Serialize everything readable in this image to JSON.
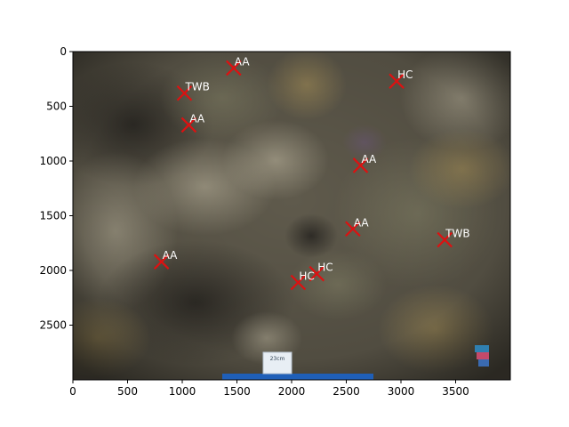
{
  "chart_data": {
    "type": "scatter",
    "title": "",
    "xlabel": "",
    "ylabel": "",
    "xlim": [
      0,
      4000
    ],
    "ylim": [
      3000,
      0
    ],
    "x_ticks": [
      0,
      500,
      1000,
      1500,
      2000,
      2500,
      3000,
      3500
    ],
    "y_ticks": [
      0,
      500,
      1000,
      1500,
      2000,
      2500
    ],
    "grid": false,
    "background": "underwater coral reef photograph",
    "marker": {
      "shape": "x",
      "color": "#dd1111"
    },
    "label_color": "#ffffff",
    "scale_tag_text": "23cm",
    "points": [
      {
        "x": 1470,
        "y": 150,
        "label": "AA"
      },
      {
        "x": 2960,
        "y": 270,
        "label": "HC"
      },
      {
        "x": 1020,
        "y": 380,
        "label": "TWB"
      },
      {
        "x": 1060,
        "y": 670,
        "label": "AA"
      },
      {
        "x": 2630,
        "y": 1040,
        "label": "AA"
      },
      {
        "x": 2560,
        "y": 1620,
        "label": "AA"
      },
      {
        "x": 3400,
        "y": 1720,
        "label": "TWB"
      },
      {
        "x": 810,
        "y": 1920,
        "label": "AA"
      },
      {
        "x": 2230,
        "y": 2030,
        "label": "HC"
      },
      {
        "x": 2060,
        "y": 2110,
        "label": "HC"
      }
    ]
  }
}
